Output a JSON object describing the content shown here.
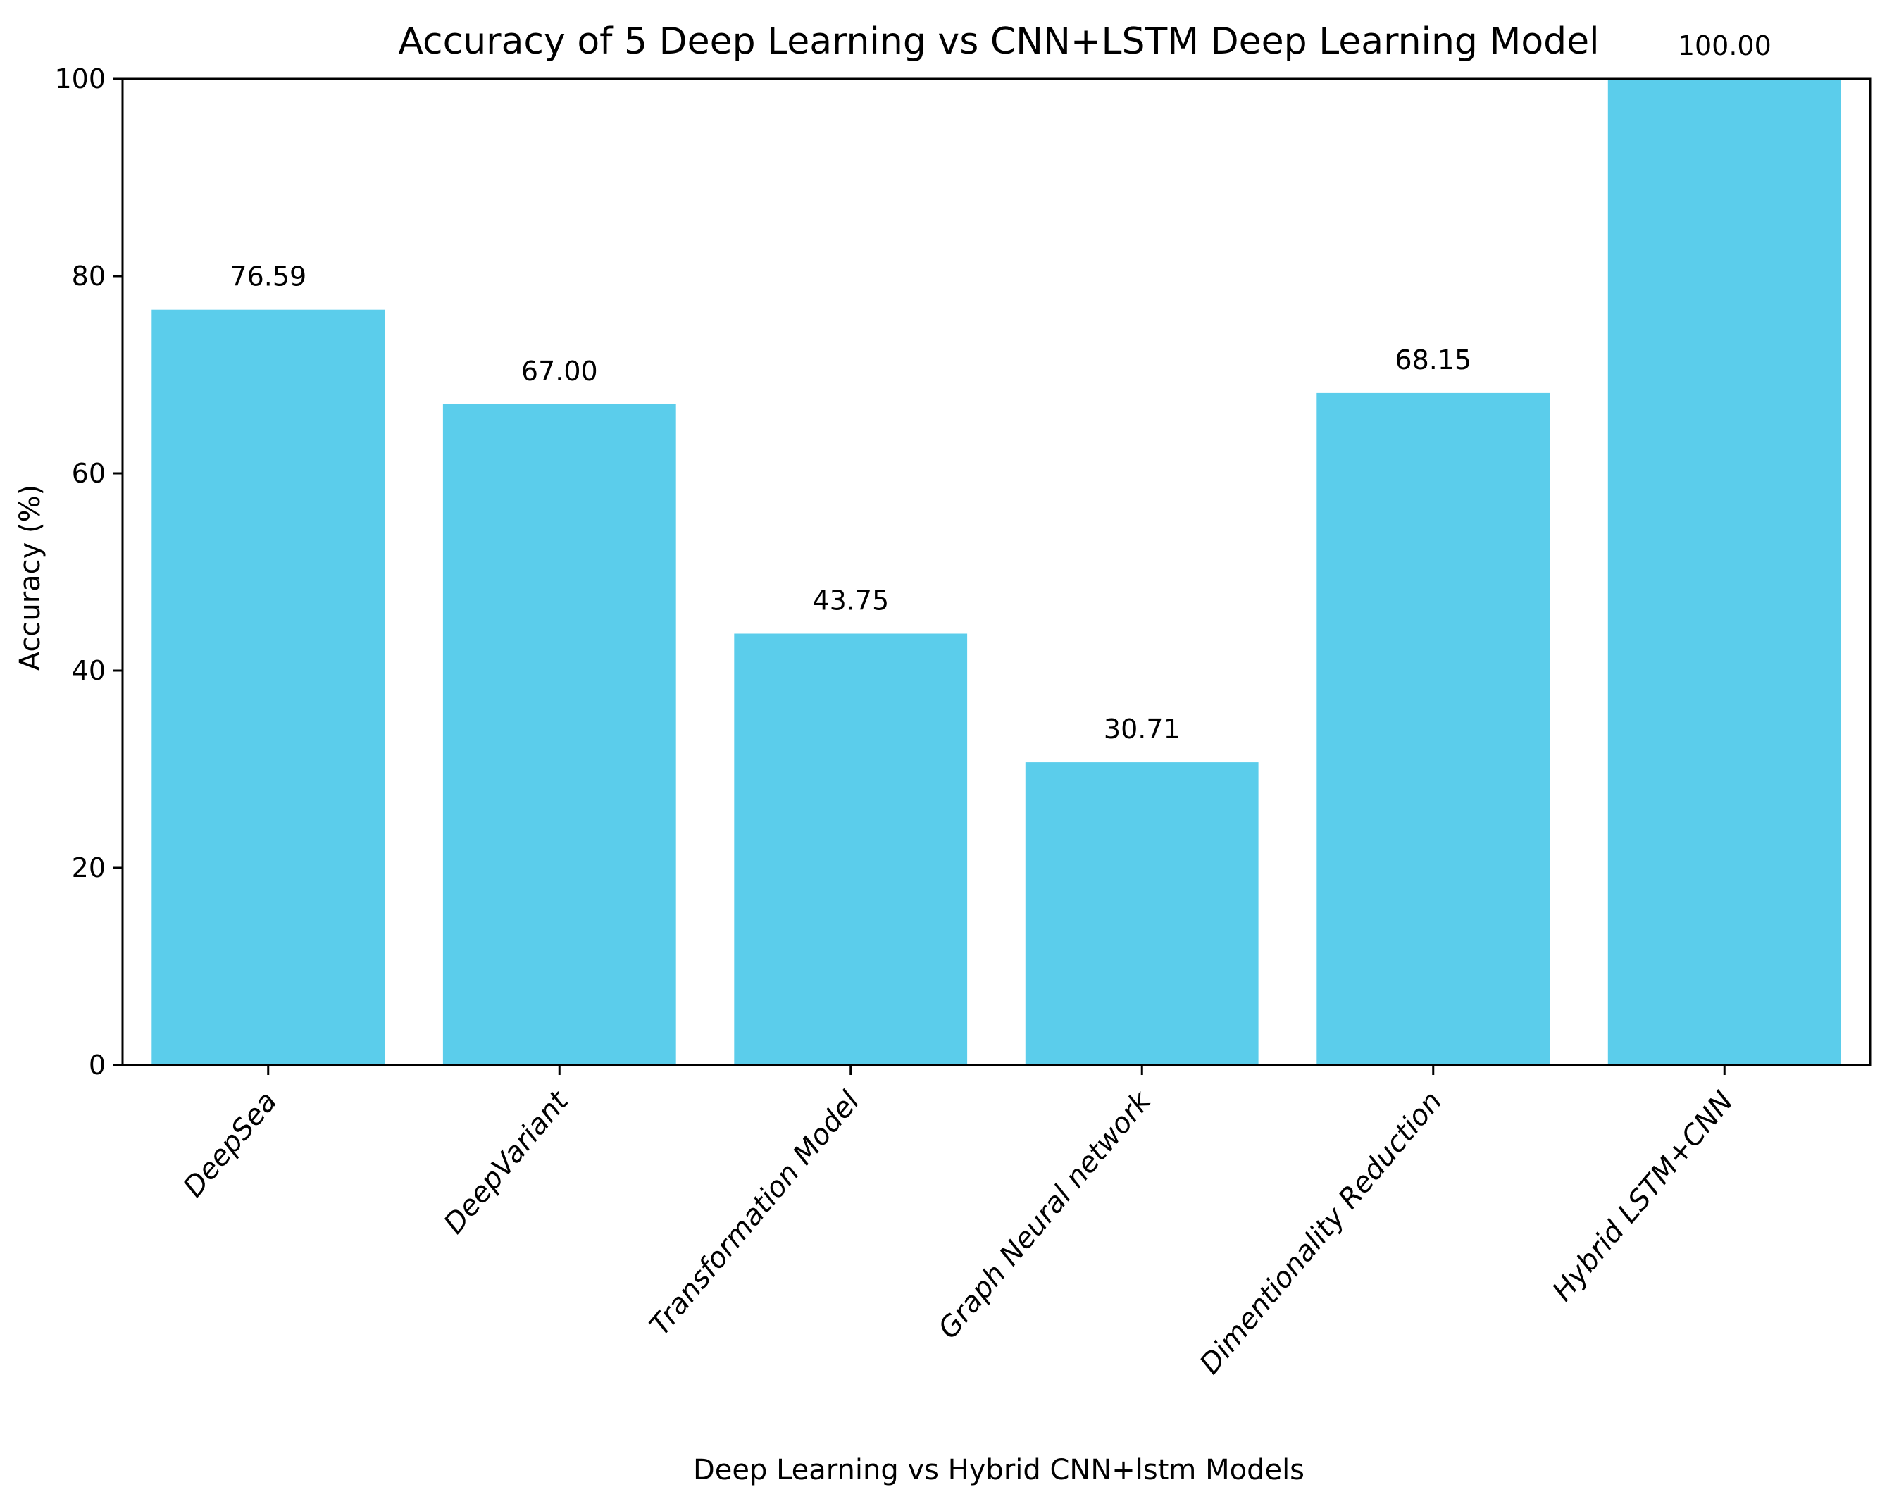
{
  "chart_data": {
    "type": "bar",
    "title": "Accuracy of 5 Deep Learning vs CNN+LSTM Deep Learning Model",
    "xlabel": "Deep Learning vs Hybrid CNN+lstm Models",
    "ylabel": "Accuracy (%)",
    "categories": [
      "DeepSea",
      "DeepVariant",
      "Transformation Model",
      "Graph Neural network",
      "Dimentionality Reduction",
      "Hybrid LSTM+CNN"
    ],
    "values": [
      76.59,
      67.0,
      43.75,
      30.71,
      68.15,
      100.0
    ],
    "data_labels": [
      "76.59",
      "67.00",
      "43.75",
      "30.71",
      "68.15",
      "100.00"
    ],
    "ylim": [
      0,
      100
    ],
    "yticks": [
      0,
      20,
      40,
      60,
      80,
      100
    ],
    "bar_color": "#5bcdeb",
    "grid": false
  }
}
